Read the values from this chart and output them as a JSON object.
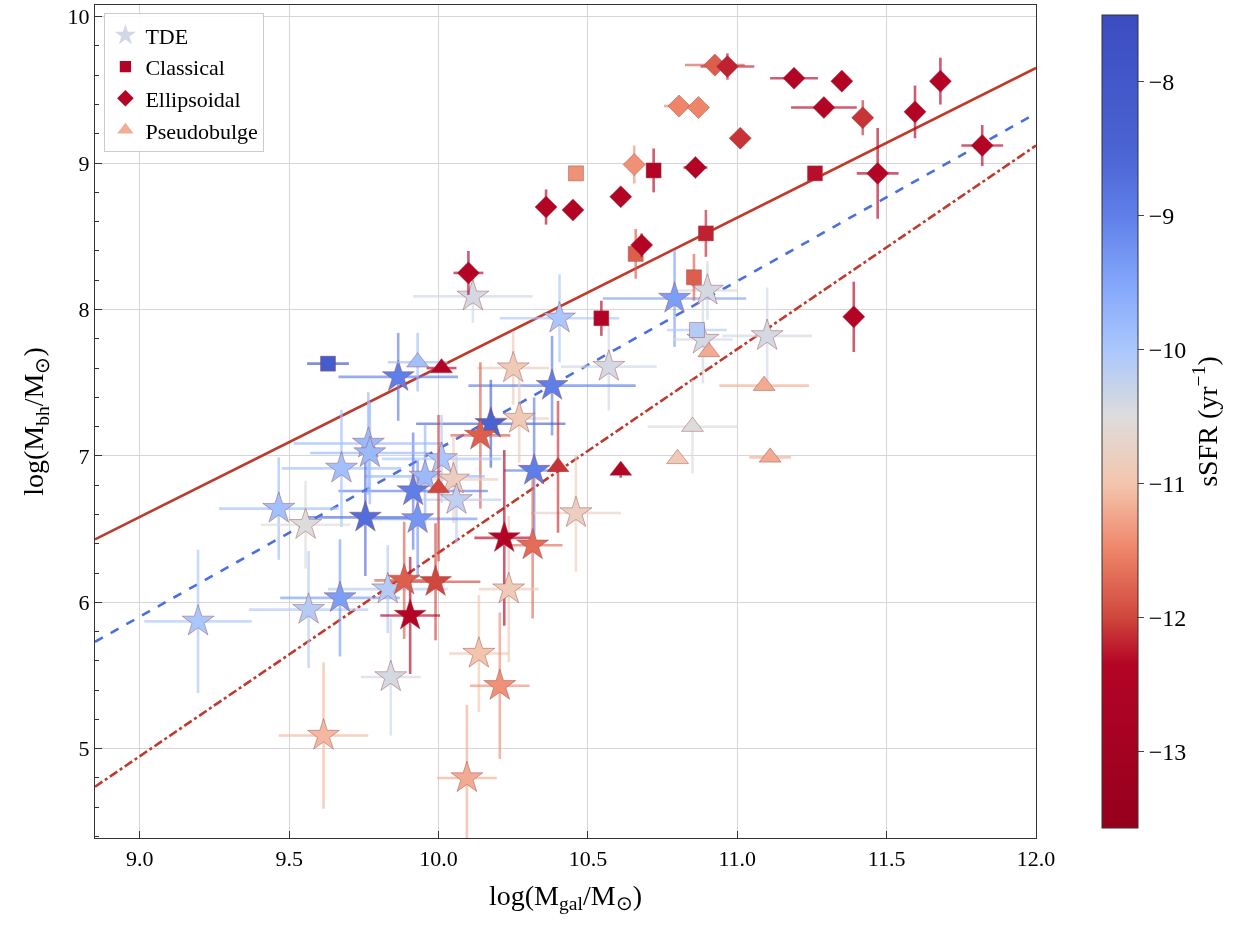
{
  "chart_data": {
    "type": "scatter",
    "xlabel": "log(M$_{gal}$/M$_{⊙}$)",
    "ylabel": "log(M$_{bh}$/M$_{⊙}$)",
    "clabel": "sSFR (yr$^{−1}$)",
    "xlim": [
      8.85,
      12.0
    ],
    "ylim": [
      4.39,
      10.08
    ],
    "xticks": [
      {
        "value": 9,
        "label": "9.0"
      },
      9.5,
      {
        "value": 10,
        "label": "10.0"
      },
      10.5,
      {
        "value": 11,
        "label": "11.0"
      },
      11.5,
      {
        "value": 12,
        "label": "12.0"
      }
    ],
    "yticks": [
      5,
      6,
      7,
      8,
      9,
      10,
      {
        "value": 4.4,
        "label": null
      },
      {
        "value": 4.6,
        "label": null
      },
      {
        "value": 4.8,
        "label": null
      },
      {
        "value": 5.2,
        "label": null
      },
      {
        "value": 5.4,
        "label": null
      },
      {
        "value": 5.6,
        "label": null
      },
      {
        "value": 5.8,
        "label": null
      },
      {
        "value": 6.2,
        "label": null
      },
      {
        "value": 6.4,
        "label": null
      },
      {
        "value": 6.6,
        "label": null
      },
      {
        "value": 6.8,
        "label": null
      },
      {
        "value": 7.2,
        "label": null
      },
      {
        "value": 7.4,
        "label": null
      },
      {
        "value": 7.6,
        "label": null
      },
      {
        "value": 7.8,
        "label": null
      },
      {
        "value": 8.2,
        "label": null
      },
      {
        "value": 8.4,
        "label": null
      },
      {
        "value": 8.6,
        "label": null
      },
      {
        "value": 8.8,
        "label": null
      },
      {
        "value": 9.2,
        "label": null
      },
      {
        "value": 9.4,
        "label": null
      },
      {
        "value": 9.6,
        "label": null
      },
      {
        "value": 9.8,
        "label": null
      }
    ],
    "clim": [
      -13.57,
      -7.5
    ],
    "cticks": [
      {
        "value": -8,
        "label": "−8"
      },
      {
        "value": -9,
        "label": "−9"
      },
      {
        "value": -10,
        "label": "−10"
      },
      {
        "value": -11,
        "label": "−11"
      },
      {
        "value": -12,
        "label": "−12"
      },
      {
        "value": -13,
        "label": "−13"
      }
    ],
    "grid": true,
    "legend": "top left",
    "series": [
      {
        "type": "line",
        "color": "#c0392b",
        "line_style": "solid",
        "x": [
          8.85,
          12.0
        ],
        "values": [
          6.43,
          9.65
        ]
      },
      {
        "type": "line",
        "color": "#4a6fe3",
        "line_style": "dashed",
        "x": [
          8.85,
          12.0
        ],
        "values": [
          5.73,
          9.34
        ]
      },
      {
        "type": "line",
        "color": "#c0392b",
        "line_style": "dashdot",
        "x": [
          8.85,
          12.0
        ],
        "values": [
          4.74,
          9.12
        ]
      },
      {
        "name": "TDE",
        "marker": "star",
        "cvalues": [
          -10.4,
          -10.0,
          -9.4,
          -10.4,
          -10.4,
          -10.4,
          -10.4,
          -10.9,
          -9.0,
          -10.9,
          -8.5,
          -11.8,
          -9.0,
          -10.0,
          -9.8,
          -10.8,
          -10.2,
          -9.0,
          -9.3,
          -10.8,
          -12.35,
          -11.7,
          -9.0,
          -9.8,
          -9.8,
          -9.9,
          -8.7,
          -9.9,
          -10.5,
          -10.0,
          -10.1,
          -9.4,
          -10.1,
          -11.8,
          -12.0,
          -12.35,
          -10.9,
          -11.0,
          -11.4,
          -10.4,
          -11.1,
          -11.2
        ],
        "x": [
          10.115,
          10.405,
          10.79,
          10.9,
          10.885,
          11.1,
          10.57,
          10.25,
          10.38,
          10.27,
          10.175,
          10.14,
          10.32,
          10.01,
          9.955,
          10.05,
          10.06,
          9.915,
          9.93,
          10.46,
          10.22,
          10.315,
          9.865,
          9.765,
          9.77,
          9.675,
          9.755,
          9.465,
          9.555,
          9.195,
          9.565,
          9.67,
          9.83,
          9.885,
          9.99,
          9.905,
          10.235,
          10.135,
          10.205,
          9.84,
          9.615,
          10.095
        ],
        "values": [
          8.09,
          7.94,
          8.075,
          8.13,
          7.795,
          7.82,
          7.61,
          7.6,
          7.48,
          7.255,
          7.22,
          7.14,
          6.9,
          6.98,
          6.86,
          6.84,
          6.7,
          6.76,
          6.57,
          6.61,
          6.44,
          6.39,
          7.54,
          7.085,
          7.02,
          6.915,
          6.58,
          6.64,
          6.53,
          5.87,
          5.95,
          6.03,
          6.09,
          6.15,
          6.14,
          5.91,
          6.09,
          5.65,
          5.43,
          5.49,
          5.09,
          4.8
        ],
        "colors": [
          "#d1d7e4",
          "#aac7fd",
          "#7b9ef7",
          "#d1d7e4",
          "#d1d7e4",
          "#d1d7e4",
          "#d1d7e4",
          "#efcab9",
          "#5f7fe8",
          "#efcab9",
          "#4a63d3",
          "#dc5f4e",
          "#5f7fe8",
          "#aac7fd",
          "#96b7fc",
          "#ebcec0",
          "#b8cdf5",
          "#5f7fe8",
          "#7496f3",
          "#ebcec0",
          "#b40426",
          "#e26c57",
          "#5f7fe8",
          "#96b7fc",
          "#96b7fc",
          "#a0befd",
          "#526edb",
          "#a0befd",
          "#dddcdc",
          "#aac7fd",
          "#b2caf9",
          "#7b9ef7",
          "#b2caf9",
          "#dc5f4e",
          "#d0473d",
          "#b40426",
          "#efcab9",
          "#f4c5ad",
          "#ef9175",
          "#d1d7e4",
          "#f3b79e",
          "#f2ad92"
        ],
        "xerrors": [
          0.2,
          0.2,
          0.24,
          0.1,
          0.1,
          0.15,
          0.16,
          0.12,
          0.28,
          0.1,
          0.25,
          0.1,
          0.1,
          0.2,
          0.2,
          0.15,
          0.15,
          0.25,
          0.2,
          0.15,
          0.1,
          0.1,
          0.2,
          0.25,
          0.2,
          0.2,
          0.2,
          0.2,
          0.15,
          0.18,
          0.2,
          0.2,
          0.2,
          0.1,
          0.15,
          0.1,
          0.1,
          0.1,
          0.1,
          0.1,
          0.15,
          0.1
        ],
        "errors": [
          0.18,
          0.3,
          0.33,
          0.2,
          0.3,
          0.33,
          0.3,
          0.25,
          0.34,
          0.3,
          0.3,
          0.5,
          0.5,
          0.3,
          0.35,
          0.3,
          0.3,
          0.4,
          0.4,
          0.4,
          0.6,
          0.5,
          0.3,
          0.35,
          0.35,
          0.4,
          0.4,
          0.35,
          0.3,
          0.49,
          0.4,
          0.4,
          0.3,
          0.4,
          0.4,
          0.4,
          0.5,
          0.4,
          0.5,
          0.4,
          0.5,
          0.5
        ]
      },
      {
        "name": "Classical",
        "marker": "square",
        "cvalues": [
          -8.2,
          -12.35,
          -12.3,
          -12.2,
          -11.8,
          -11.8,
          -12.35,
          -10.1,
          -11.4
        ],
        "x": [
          9.63,
          10.72,
          11.26,
          10.895,
          10.66,
          10.855,
          10.545,
          10.865,
          10.46
        ],
        "values": [
          7.63,
          8.95,
          8.93,
          8.52,
          8.38,
          8.22,
          7.94,
          7.86,
          8.93
        ],
        "colors": [
          "#3f52c4",
          "#b40426",
          "#b70a29",
          "#c01f30",
          "#dc5f4e",
          "#dc5f4e",
          "#b40426",
          "#b2caf9",
          "#ef9175"
        ],
        "xerrors": [
          0.07,
          null,
          null,
          null,
          null,
          null,
          null,
          0.1,
          null
        ],
        "errors": [
          null,
          0.15,
          null,
          0.16,
          0.17,
          0.16,
          0.12,
          null,
          null
        ]
      },
      {
        "name": "Ellipsoidal",
        "marker": "diamond",
        "cvalues": [
          -12.35,
          -11.4,
          -12.35,
          -11.5,
          -11.5,
          -11.8,
          -12.2,
          -12.1,
          -12.35,
          -12.35,
          -12.35,
          -12.1,
          -12.35,
          -12.35,
          -12.35,
          -12.35,
          -12.35,
          -12.35,
          -12.35,
          -12.35,
          -12.35
        ],
        "x": [
          10.61,
          10.655,
          10.86,
          10.805,
          10.87,
          10.925,
          10.967,
          11.01,
          11.19,
          11.35,
          11.29,
          11.42,
          11.595,
          11.68,
          11.47,
          11.82,
          10.68,
          10.36,
          10.45,
          10.1,
          11.39
        ],
        "values": [
          8.77,
          8.99,
          8.97,
          9.39,
          9.38,
          9.67,
          9.66,
          9.17,
          9.58,
          9.56,
          9.38,
          9.31,
          9.35,
          9.56,
          8.93,
          9.12,
          8.44,
          8.7,
          8.68,
          8.25,
          7.95
        ],
        "colors": [
          "#b40426",
          "#ef9175",
          "#b40426",
          "#ee8468",
          "#ee8468",
          "#dc5f4e",
          "#c01f30",
          "#c83136",
          "#b40426",
          "#b40426",
          "#b40426",
          "#c83136",
          "#b40426",
          "#b40426",
          "#b40426",
          "#b40426",
          "#b40426",
          "#b40426",
          "#b40426",
          "#b40426",
          "#b40426"
        ],
        "xerrors": [
          null,
          null,
          0.04,
          0.05,
          0.03,
          0.1,
          0.09,
          null,
          0.08,
          null,
          0.11,
          null,
          null,
          null,
          0.07,
          0.07,
          null,
          null,
          null,
          0.05,
          null
        ],
        "errors": [
          null,
          0.13,
          null,
          null,
          null,
          null,
          0.09,
          null,
          0.05,
          null,
          null,
          0.12,
          0.18,
          0.16,
          0.31,
          0.14,
          0.08,
          0.12,
          null,
          0.15,
          0.24
        ]
      },
      {
        "name": "Pseudobulge",
        "marker": "triangle",
        "cvalues": [
          -9.9,
          -12.35,
          -12.1,
          -12.35,
          -12.0,
          -10.5,
          -10.9,
          -11.2,
          -11.2,
          -11.2
        ],
        "x": [
          9.93,
          10.01,
          10.4,
          10.61,
          10.0,
          10.85,
          10.8,
          11.09,
          11.11,
          10.905
        ],
        "values": [
          7.64,
          7.6,
          6.925,
          6.9,
          6.78,
          7.2,
          6.98,
          7.48,
          6.99,
          7.71
        ],
        "colors": [
          "#a0befd",
          "#b40426",
          "#c83136",
          "#b40426",
          "#d0473d",
          "#dddcdc",
          "#efcab9",
          "#f2ad92",
          "#f2ad92",
          "#f2ad92"
        ],
        "xerrors": [
          0.1,
          0.05,
          null,
          null,
          null,
          0.15,
          null,
          0.15,
          0.07,
          null
        ],
        "errors": [
          0.2,
          null,
          0.45,
          0.05,
          0.5,
          0.32,
          null,
          null,
          null,
          null
        ]
      }
    ]
  }
}
